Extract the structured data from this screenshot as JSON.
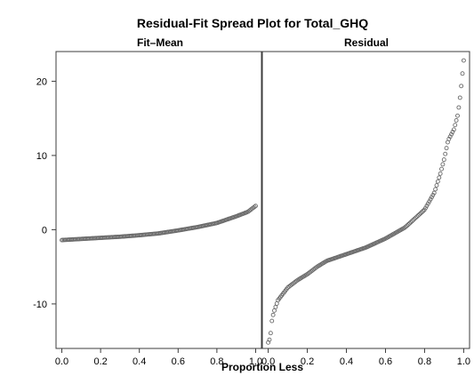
{
  "chart_data": {
    "type": "scatter",
    "title": "Residual-Fit Spread Plot for Total_GHQ",
    "xlabel": "Proportion Less",
    "ylabel": "",
    "ylim": [
      -16,
      24
    ],
    "xlim": [
      -0.03,
      1.03
    ],
    "y_ticks": [
      20,
      10,
      0,
      -10
    ],
    "y_tick_labels": [
      "20",
      "10",
      "0",
      "-10"
    ],
    "x_ticks": [
      0.0,
      0.2,
      0.4,
      0.6,
      0.8,
      1.0
    ],
    "x_tick_labels": [
      "0.0",
      "0.2",
      "0.4",
      "0.6",
      "0.8",
      "1.0"
    ],
    "grid": false,
    "panels": [
      {
        "name": "Fit–Mean",
        "points": [
          [
            0.0,
            -1.4
          ],
          [
            0.1,
            -1.25
          ],
          [
            0.2,
            -1.1
          ],
          [
            0.3,
            -0.95
          ],
          [
            0.4,
            -0.75
          ],
          [
            0.5,
            -0.5
          ],
          [
            0.6,
            -0.1
          ],
          [
            0.7,
            0.35
          ],
          [
            0.8,
            0.9
          ],
          [
            0.9,
            1.8
          ],
          [
            0.96,
            2.4
          ],
          [
            1.0,
            3.2
          ]
        ]
      },
      {
        "name": "Residual",
        "points": [
          [
            0.0,
            -15.2
          ],
          [
            0.01,
            -14.6
          ],
          [
            0.02,
            -12.0
          ],
          [
            0.03,
            -11.0
          ],
          [
            0.05,
            -9.5
          ],
          [
            0.1,
            -7.8
          ],
          [
            0.15,
            -6.8
          ],
          [
            0.2,
            -6.0
          ],
          [
            0.25,
            -5.0
          ],
          [
            0.3,
            -4.2
          ],
          [
            0.4,
            -3.3
          ],
          [
            0.5,
            -2.4
          ],
          [
            0.6,
            -1.2
          ],
          [
            0.7,
            0.3
          ],
          [
            0.8,
            2.7
          ],
          [
            0.85,
            5.0
          ],
          [
            0.88,
            7.5
          ],
          [
            0.9,
            9.5
          ],
          [
            0.92,
            12.0
          ],
          [
            0.95,
            13.5
          ],
          [
            0.97,
            15.5
          ],
          [
            0.98,
            17.5
          ],
          [
            0.99,
            20.0
          ],
          [
            1.0,
            22.8
          ]
        ]
      }
    ]
  }
}
